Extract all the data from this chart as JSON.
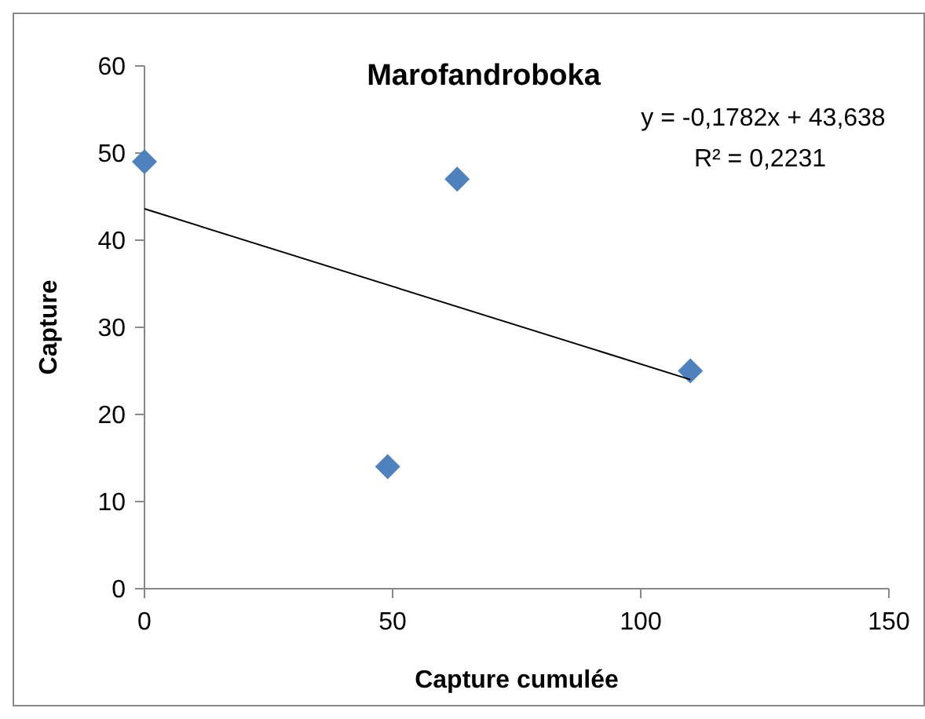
{
  "chart_data": {
    "type": "scatter",
    "title": "Marofandroboka",
    "xlabel": "Capture cumulée",
    "ylabel": "Capture",
    "annotations": [
      "y = -0,1782x + 43,638",
      "R² = 0,2231"
    ],
    "series": [
      {
        "type": "scatter",
        "color": "#4f81bd",
        "marker": "diamond",
        "x": [
          0,
          49,
          63,
          110
        ],
        "values": [
          49,
          14,
          47,
          25
        ]
      },
      {
        "type": "line",
        "color": "#000000",
        "marker": "none",
        "x": [
          0,
          110
        ],
        "values": [
          43.6,
          24.0
        ]
      }
    ],
    "xlim": [
      0,
      150
    ],
    "xticks": [
      0,
      50,
      100,
      150
    ],
    "ylim": [
      0,
      60
    ],
    "yticks": [
      0,
      10,
      20,
      30,
      40,
      50,
      60
    ]
  }
}
